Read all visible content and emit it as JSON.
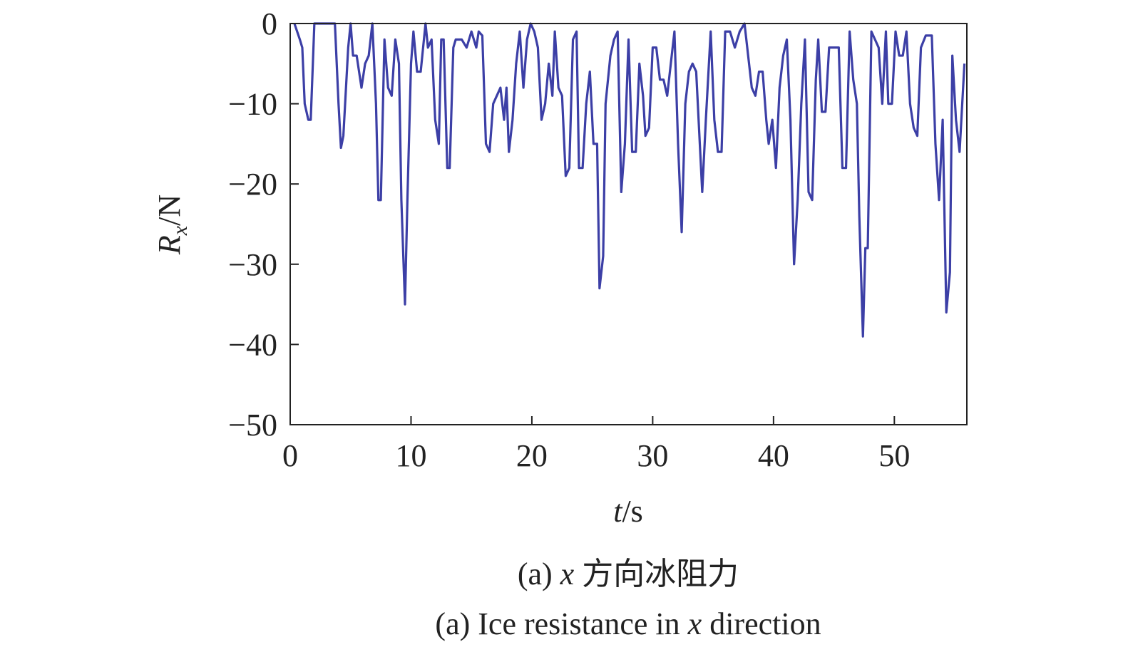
{
  "chart_data": {
    "type": "line",
    "ylabel": {
      "symbol": "R",
      "subscript": "x",
      "unit": "/N"
    },
    "xlabel": {
      "symbol": "t",
      "unit": "/s"
    },
    "caption_cn": [
      "(a) ",
      "x",
      " 方向冰阻力"
    ],
    "caption_en": [
      "(a) Ice resistance in ",
      "x",
      " direction"
    ],
    "xlim": [
      0,
      56
    ],
    "ylim": [
      -50,
      0
    ],
    "xticks": [
      0,
      10,
      20,
      30,
      40,
      50
    ],
    "yticks": [
      0,
      {
        "value": -10,
        "label": "−10"
      },
      {
        "value": -20,
        "label": "−20"
      },
      {
        "value": -30,
        "label": "−30"
      },
      {
        "value": -40,
        "label": "−40"
      },
      {
        "value": -50,
        "label": "−50"
      }
    ],
    "series": [
      {
        "color": "#3c3fa6",
        "x": [
          0.35,
          0.8,
          1.0,
          1.2,
          1.5,
          1.7,
          2.0,
          3.7,
          4.0,
          4.2,
          4.4,
          4.8,
          5.0,
          5.2,
          5.5,
          5.8,
          5.9,
          6.2,
          6.5,
          6.8,
          7.1,
          7.3,
          7.5,
          7.8,
          8.1,
          8.4,
          8.7,
          9.0,
          9.2,
          9.5,
          9.7,
          10.0,
          10.2,
          10.5,
          10.8,
          11.2,
          11.4,
          11.7,
          12.0,
          12.3,
          12.5,
          12.7,
          13.0,
          13.2,
          13.5,
          13.7,
          14.2,
          14.6,
          15.0,
          15.4,
          15.6,
          15.9,
          16.2,
          16.5,
          16.8,
          17.1,
          17.4,
          17.7,
          17.9,
          18.1,
          18.4,
          18.7,
          19.0,
          19.3,
          19.6,
          19.9,
          20.2,
          20.5,
          20.8,
          21.1,
          21.4,
          21.7,
          21.9,
          22.2,
          22.5,
          22.8,
          23.1,
          23.4,
          23.7,
          23.9,
          24.2,
          24.5,
          24.8,
          25.1,
          25.4,
          25.6,
          25.9,
          26.1,
          26.5,
          26.8,
          27.1,
          27.4,
          27.7,
          28.0,
          28.3,
          28.6,
          28.9,
          29.2,
          29.4,
          29.7,
          30.0,
          30.3,
          30.6,
          30.9,
          31.2,
          31.5,
          31.8,
          32.1,
          32.4,
          32.7,
          33.0,
          33.3,
          33.6,
          33.9,
          34.1,
          34.4,
          34.8,
          35.1,
          35.4,
          35.7,
          36.0,
          36.4,
          36.8,
          37.2,
          37.6,
          37.9,
          38.2,
          38.5,
          38.8,
          39.1,
          39.4,
          39.6,
          39.9,
          40.2,
          40.5,
          40.8,
          41.1,
          41.4,
          41.7,
          42.0,
          42.3,
          42.6,
          42.9,
          43.2,
          43.5,
          43.7,
          44.0,
          44.3,
          44.6,
          45.0,
          45.4,
          45.7,
          46.0,
          46.3,
          46.6,
          46.9,
          47.1,
          47.4,
          47.6,
          47.8,
          48.1,
          48.4,
          48.7,
          49.0,
          49.3,
          49.5,
          49.8,
          50.1,
          50.4,
          50.7,
          51.0,
          51.3,
          51.6,
          51.9,
          52.2,
          52.6,
          53.1,
          53.4,
          53.7,
          54.0,
          54.3,
          54.6,
          54.8,
          55.1,
          55.4,
          55.8
        ],
        "values": [
          0,
          -2,
          -3,
          -10,
          -12,
          -12,
          0,
          0,
          -10,
          -15.5,
          -14,
          -3,
          0,
          -4,
          -4,
          -7,
          -8,
          -5,
          -4,
          0,
          -10,
          -22,
          -22,
          -2,
          -8,
          -9,
          -2,
          -5,
          -22,
          -35,
          -22,
          -5,
          -1,
          -6,
          -6,
          0,
          -3,
          -2,
          -12,
          -15,
          -2,
          -2,
          -18,
          -18,
          -3,
          -2,
          -2,
          -3,
          -1,
          -3,
          -1,
          -1.5,
          -15,
          -16,
          -10,
          -9,
          -8,
          -12,
          -8,
          -16,
          -12,
          -5,
          -1,
          -8,
          -2,
          0,
          -1,
          -3,
          -12,
          -10,
          -5,
          -9,
          -1,
          -8,
          -9,
          -19,
          -18,
          -2,
          -1,
          -18,
          -18,
          -10,
          -6,
          -15,
          -15,
          -33,
          -29,
          -10,
          -4,
          -2,
          -1,
          -21,
          -15,
          -2,
          -16,
          -16,
          -5,
          -9,
          -14,
          -13,
          -3,
          -3,
          -7,
          -7,
          -9,
          -5,
          -1,
          -15,
          -26,
          -10,
          -6,
          -5,
          -6,
          -15,
          -21,
          -12,
          -1,
          -12,
          -16,
          -16,
          -1,
          -1,
          -3,
          -1,
          0,
          -4,
          -8,
          -9,
          -6,
          -6,
          -12,
          -15,
          -12,
          -18,
          -8,
          -4,
          -2,
          -12,
          -30,
          -22,
          -10,
          -2,
          -21,
          -22,
          -7,
          -2,
          -11,
          -11,
          -3,
          -3,
          -3,
          -18,
          -18,
          -1,
          -7,
          -10,
          -24,
          -39,
          -28,
          -28,
          -1,
          -2,
          -3,
          -10,
          -1,
          -10,
          -10,
          -1,
          -4,
          -4,
          -1,
          -10,
          -13,
          -14,
          -3,
          -1.5,
          -1.5,
          -15,
          -22,
          -12,
          -36,
          -31,
          -4,
          -12,
          -16,
          -5
        ]
      }
    ]
  }
}
